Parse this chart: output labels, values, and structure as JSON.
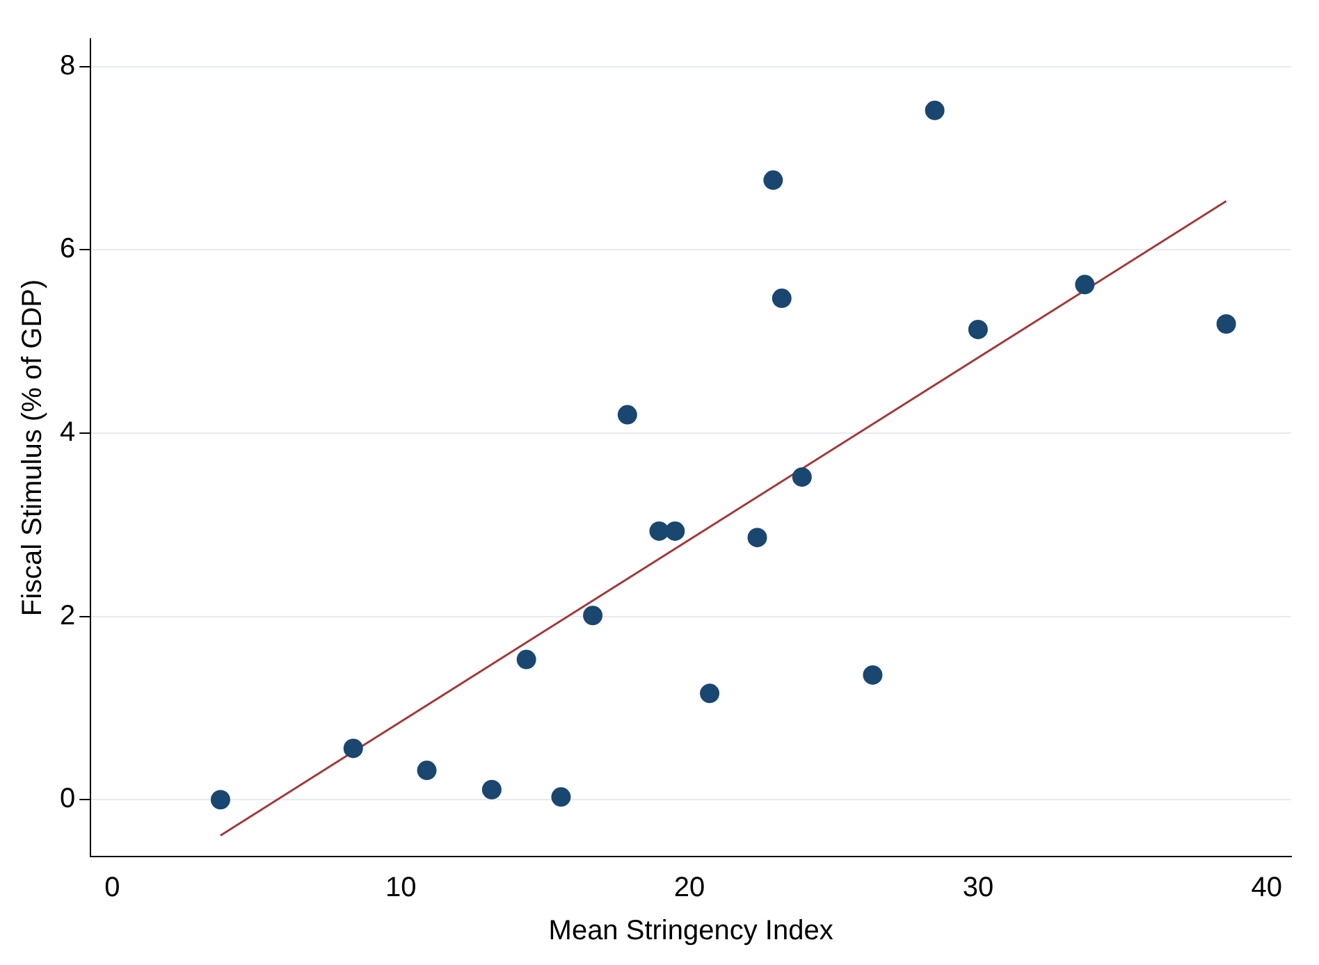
{
  "chart_data": {
    "type": "scatter",
    "xlabel": "Mean Stringency Index",
    "ylabel": "Fiscal Stimulus (% of GDP)",
    "xlim": [
      -0.75,
      40.85
    ],
    "ylim": [
      -0.62,
      8.3
    ],
    "xticks": [
      0,
      10,
      20,
      30,
      40
    ],
    "yticks": [
      0,
      2,
      4,
      6,
      8
    ],
    "grid": "y",
    "legend": false,
    "marker": "circle",
    "series": [
      {
        "type": "scatter",
        "color": "#1a476f",
        "x": [
          3.75,
          8.35,
          10.9,
          13.15,
          14.35,
          15.55,
          16.65,
          17.85,
          18.95,
          19.5,
          20.7,
          22.35,
          22.9,
          23.2,
          23.9,
          26.35,
          28.5,
          30.0,
          33.7,
          38.6
        ],
        "values": [
          0,
          0.56,
          0.32,
          0.11,
          1.53,
          0.03,
          2.01,
          4.2,
          2.93,
          2.93,
          1.16,
          2.86,
          6.76,
          5.47,
          3.52,
          1.36,
          7.52,
          5.13,
          5.62,
          5.19
        ]
      },
      {
        "type": "line",
        "color": "#a03a3a",
        "marker": "none",
        "x": [
          3.75,
          38.6
        ],
        "values": [
          -0.39,
          6.53
        ]
      }
    ]
  }
}
